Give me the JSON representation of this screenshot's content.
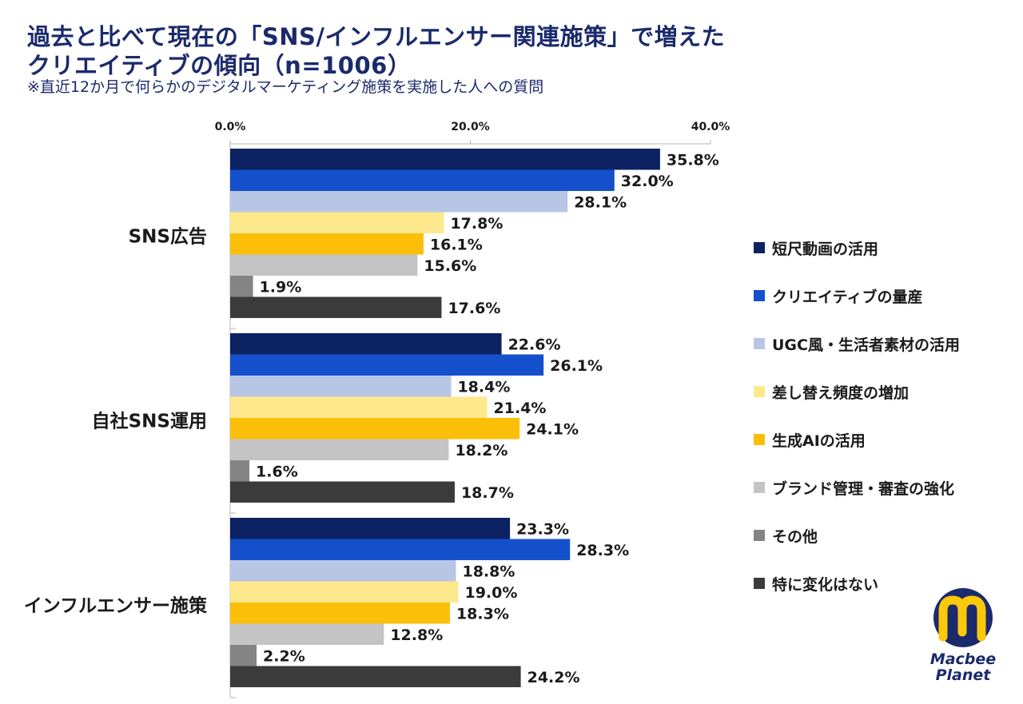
{
  "title": "過去と比べて現在の「SNS/インフルエンサー関連施策」で増えた\nクリエイティブの傾向（n=1006）",
  "subtitle": "※直近12か月で何らかのデジタルマーケティング施策を実施した人への質問",
  "logo": {
    "line1": "Macbee",
    "line2": "Planet"
  },
  "chart_data": {
    "type": "bar",
    "orientation": "horizontal",
    "xlim": [
      0,
      40
    ],
    "x_ticks": [
      "0.0%",
      "20.0%",
      "40.0%"
    ],
    "x_tick_values": [
      0,
      20,
      40
    ],
    "legend_position": "right",
    "categories": [
      "SNS広告",
      "自社SNS運用",
      "インフルエンサー施策"
    ],
    "series": [
      {
        "name": "短尺動画の活用",
        "color": "#0d2263",
        "values": [
          35.8,
          22.6,
          23.3
        ],
        "labels": [
          "35.8%",
          "22.6%",
          "23.3%"
        ]
      },
      {
        "name": "クリエイティブの量産",
        "color": "#1450cc",
        "values": [
          32.0,
          26.1,
          28.3
        ],
        "labels": [
          "32.0%",
          "26.1%",
          "28.3%"
        ]
      },
      {
        "name": "UGC風・生活者素材の活用",
        "color": "#b8c6e6",
        "values": [
          28.1,
          18.4,
          18.8
        ],
        "labels": [
          "28.1%",
          "18.4%",
          "18.8%"
        ]
      },
      {
        "name": "差し替え頻度の増加",
        "color": "#fde98c",
        "values": [
          17.8,
          21.4,
          19.0
        ],
        "labels": [
          "17.8%",
          "21.4%",
          "19.0%"
        ]
      },
      {
        "name": "生成AIの活用",
        "color": "#fbbf0a",
        "values": [
          16.1,
          24.1,
          18.3
        ],
        "labels": [
          "16.1%",
          "24.1%",
          "18.3%"
        ]
      },
      {
        "name": "ブランド管理・審査の強化",
        "color": "#c4c4c4",
        "values": [
          15.6,
          18.2,
          12.8
        ],
        "labels": [
          "15.6%",
          "18.2%",
          "12.8%"
        ]
      },
      {
        "name": "その他",
        "color": "#848484",
        "values": [
          1.9,
          1.6,
          2.2
        ],
        "labels": [
          "1.9%",
          "1.6%",
          "2.2%"
        ]
      },
      {
        "name": "特に変化はない",
        "color": "#3b3b3b",
        "values": [
          17.6,
          18.7,
          24.2
        ],
        "labels": [
          "17.6%",
          "18.7%",
          "24.2%"
        ]
      }
    ]
  }
}
